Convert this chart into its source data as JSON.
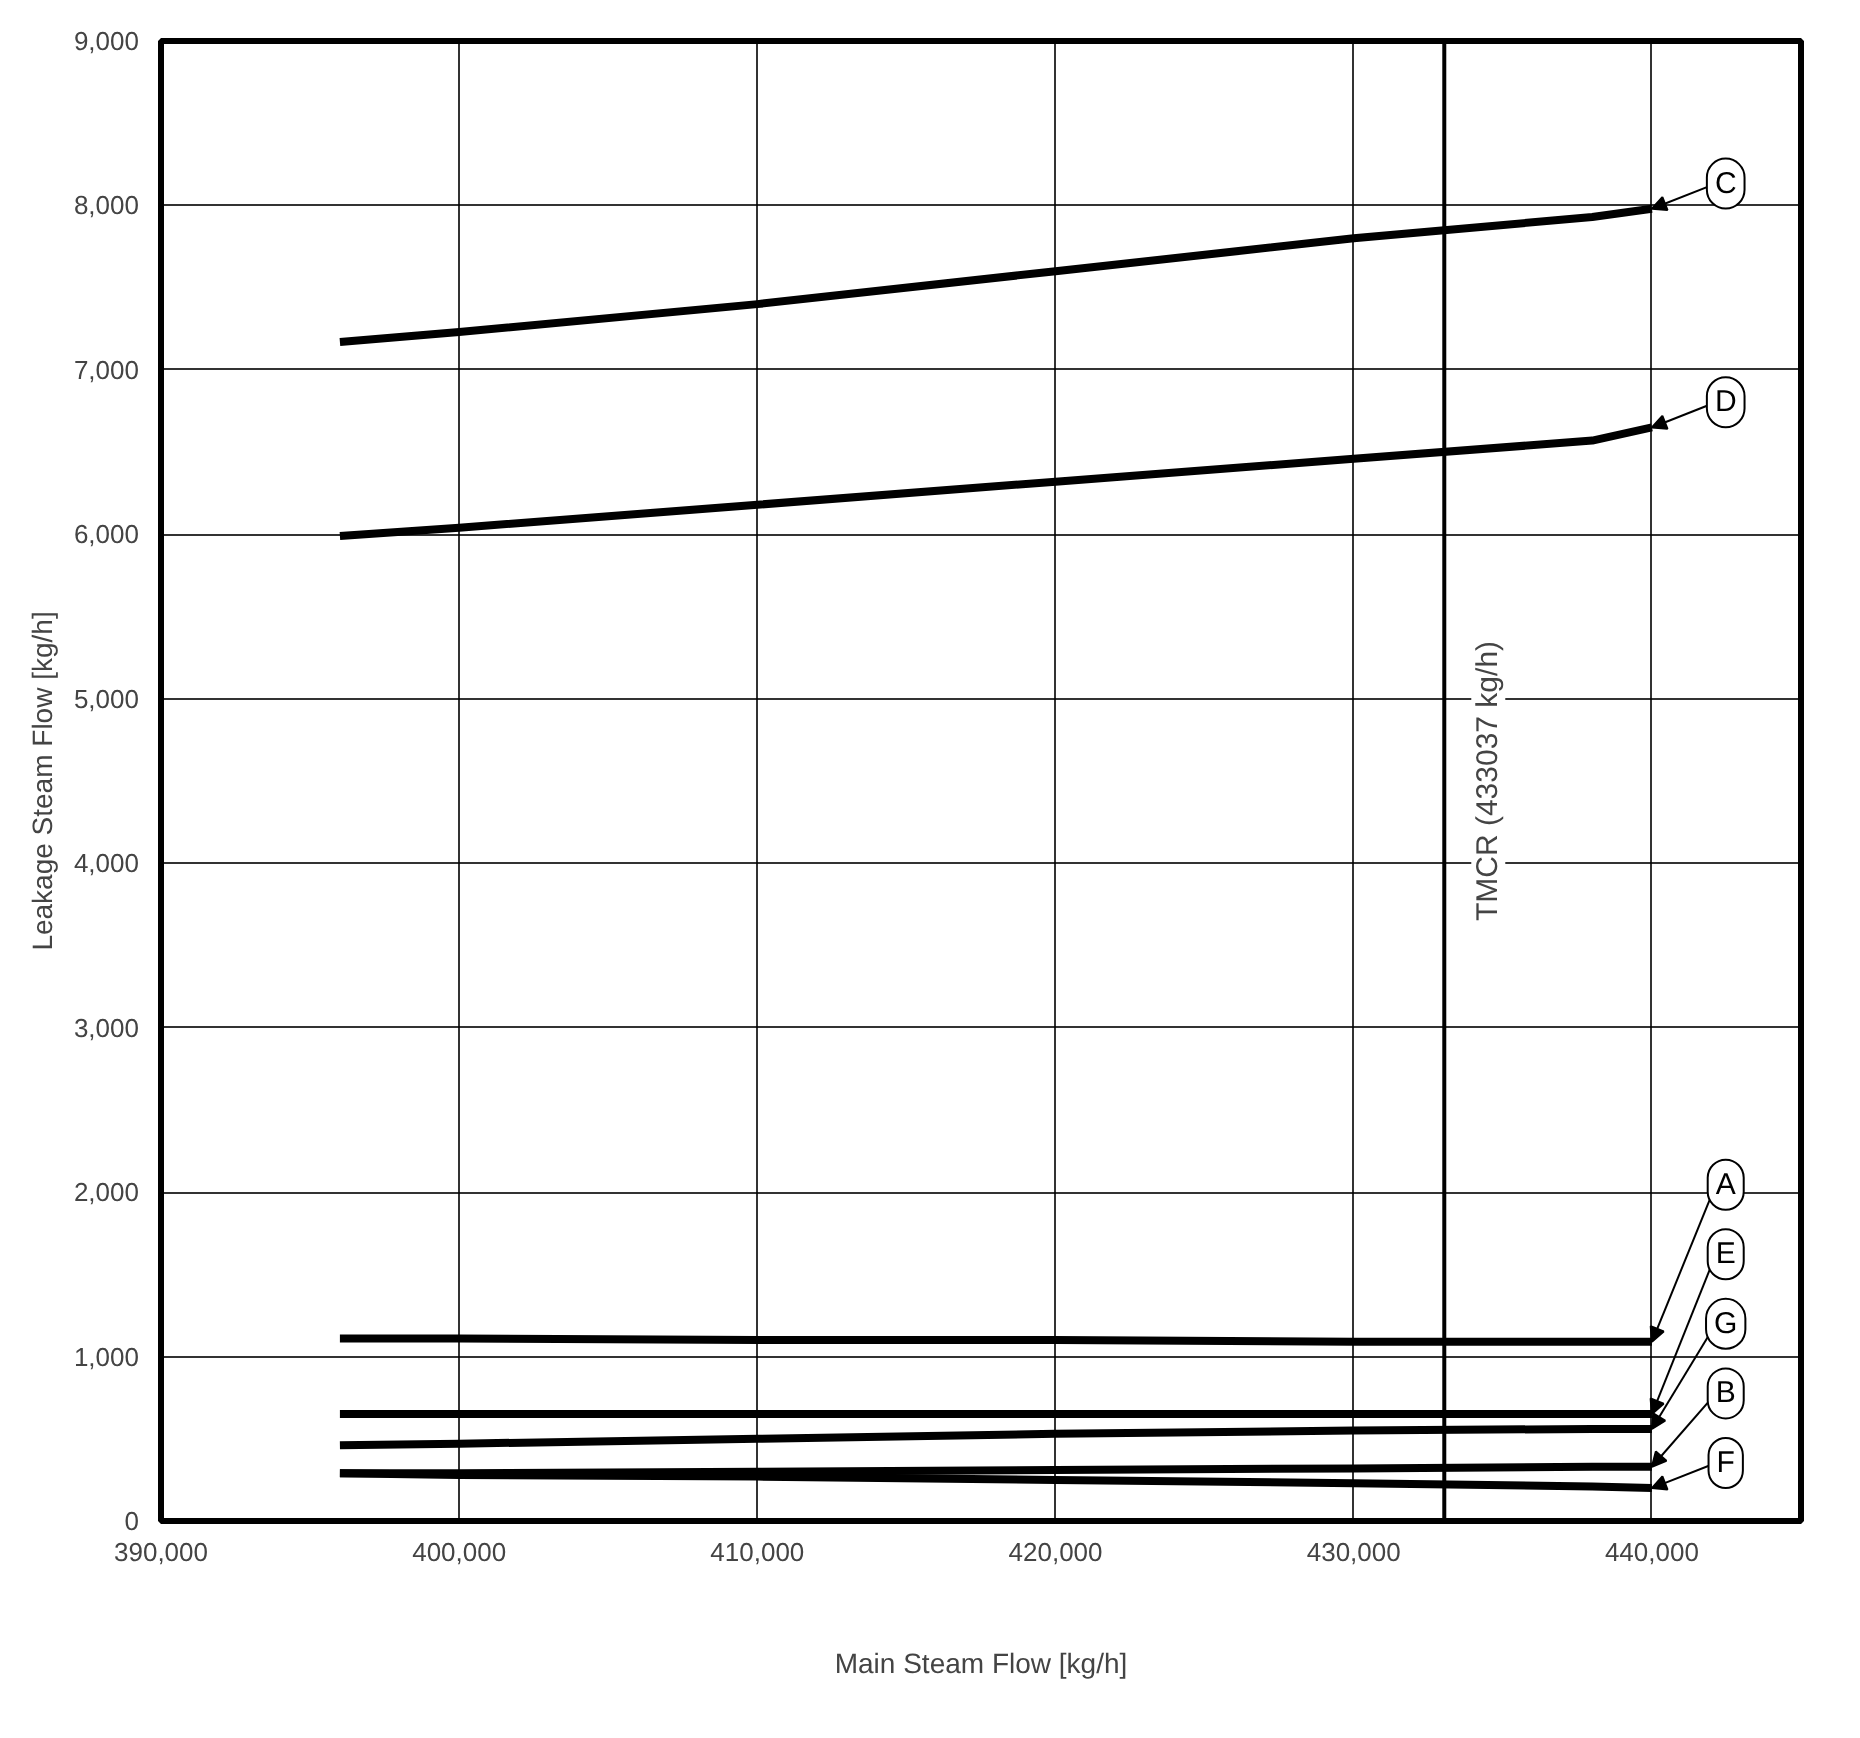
{
  "chart_data": {
    "type": "line",
    "xlabel": "Main Steam Flow [kg/h]",
    "ylabel": "Leakage Steam Flow [kg/h]",
    "x": [
      396000,
      400000,
      410000,
      420000,
      430000,
      438000,
      440000
    ],
    "series": [
      {
        "name": "C",
        "color": "#000000",
        "values": [
          7170,
          7230,
          7400,
          7600,
          7800,
          7930,
          7980
        ]
      },
      {
        "name": "D",
        "color": "#000000",
        "values": [
          5990,
          6040,
          6180,
          6320,
          6460,
          6570,
          6650
        ]
      },
      {
        "name": "A",
        "color": "#000000",
        "values": [
          1110,
          1110,
          1100,
          1100,
          1090,
          1090,
          1090
        ]
      },
      {
        "name": "E",
        "color": "#000000",
        "values": [
          650,
          650,
          650,
          650,
          650,
          650,
          650
        ]
      },
      {
        "name": "G",
        "color": "#000000",
        "values": [
          460,
          470,
          500,
          530,
          550,
          560,
          560
        ]
      },
      {
        "name": "B",
        "color": "#000000",
        "values": [
          290,
          290,
          300,
          310,
          320,
          330,
          330
        ]
      },
      {
        "name": "F",
        "color": "#000000",
        "values": [
          290,
          280,
          270,
          250,
          230,
          210,
          200
        ]
      }
    ],
    "xlim": [
      390000,
      445000
    ],
    "ylim": [
      0,
      9000
    ],
    "xticks": [
      {
        "value": 390000,
        "label": "390,000"
      },
      {
        "value": 400000,
        "label": "400,000"
      },
      {
        "value": 410000,
        "label": "410,000"
      },
      {
        "value": 420000,
        "label": "420,000"
      },
      {
        "value": 430000,
        "label": "430,000"
      },
      {
        "value": 440000,
        "label": "440,000"
      }
    ],
    "yticks": [
      {
        "value": 0,
        "label": "0"
      },
      {
        "value": 1000,
        "label": "1,000"
      },
      {
        "value": 2000,
        "label": "2,000"
      },
      {
        "value": 3000,
        "label": "3,000"
      },
      {
        "value": 4000,
        "label": "4,000"
      },
      {
        "value": 5000,
        "label": "5,000"
      },
      {
        "value": 6000,
        "label": "6,000"
      },
      {
        "value": 7000,
        "label": "7,000"
      },
      {
        "value": 8000,
        "label": "8,000"
      },
      {
        "value": 9000,
        "label": "9,000"
      }
    ],
    "ref_lines": [
      {
        "axis": "x",
        "value": 433037,
        "label": "TMCR (433037 kg/h)",
        "color": "#000000"
      }
    ],
    "grid": true,
    "legend": "right",
    "marker": "none",
    "line_style": "solid"
  }
}
